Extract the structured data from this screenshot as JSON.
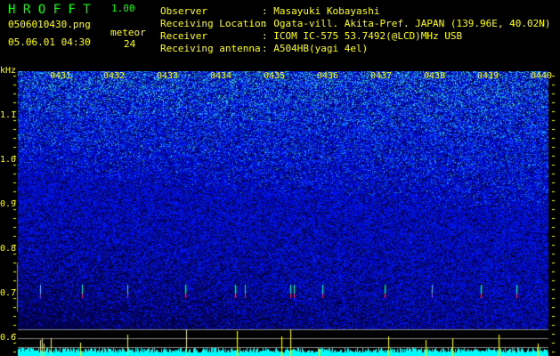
{
  "header": {
    "app_title": "H R O F F T",
    "version": "1.00",
    "filename": "0506010430.png",
    "datetime": "05.06.01 04:30",
    "meteor_label": "meteor",
    "meteor_count": "24"
  },
  "info": [
    {
      "label": "Observer",
      "value": ": Masayuki Kobayashi"
    },
    {
      "label": "Receiving Location",
      "value": ": Ogata-vill. Akita-Pref. JAPAN (139.96E, 40.02N)"
    },
    {
      "label": "Receiver",
      "value": ": ICOM IC-575 53.7492(@LCD)MHz USB"
    },
    {
      "label": "Receiving antenna",
      "value": ": A504HB(yagi 4el)"
    }
  ],
  "spectrogram": {
    "y_unit": "kHz",
    "y_ticks": [
      "1.1",
      "1.0",
      "0.9",
      "0.8",
      "0.7",
      "0.6"
    ],
    "time_labels": [
      "0431",
      "0432",
      "0433",
      "0434",
      "0435",
      "0436",
      "0437",
      "0438",
      "0439",
      "0440"
    ],
    "colors": {
      "text": "#ffff00",
      "title": "#00ff00",
      "baseline": "#00ffff",
      "meteor_spike": "#ffff00"
    }
  }
}
